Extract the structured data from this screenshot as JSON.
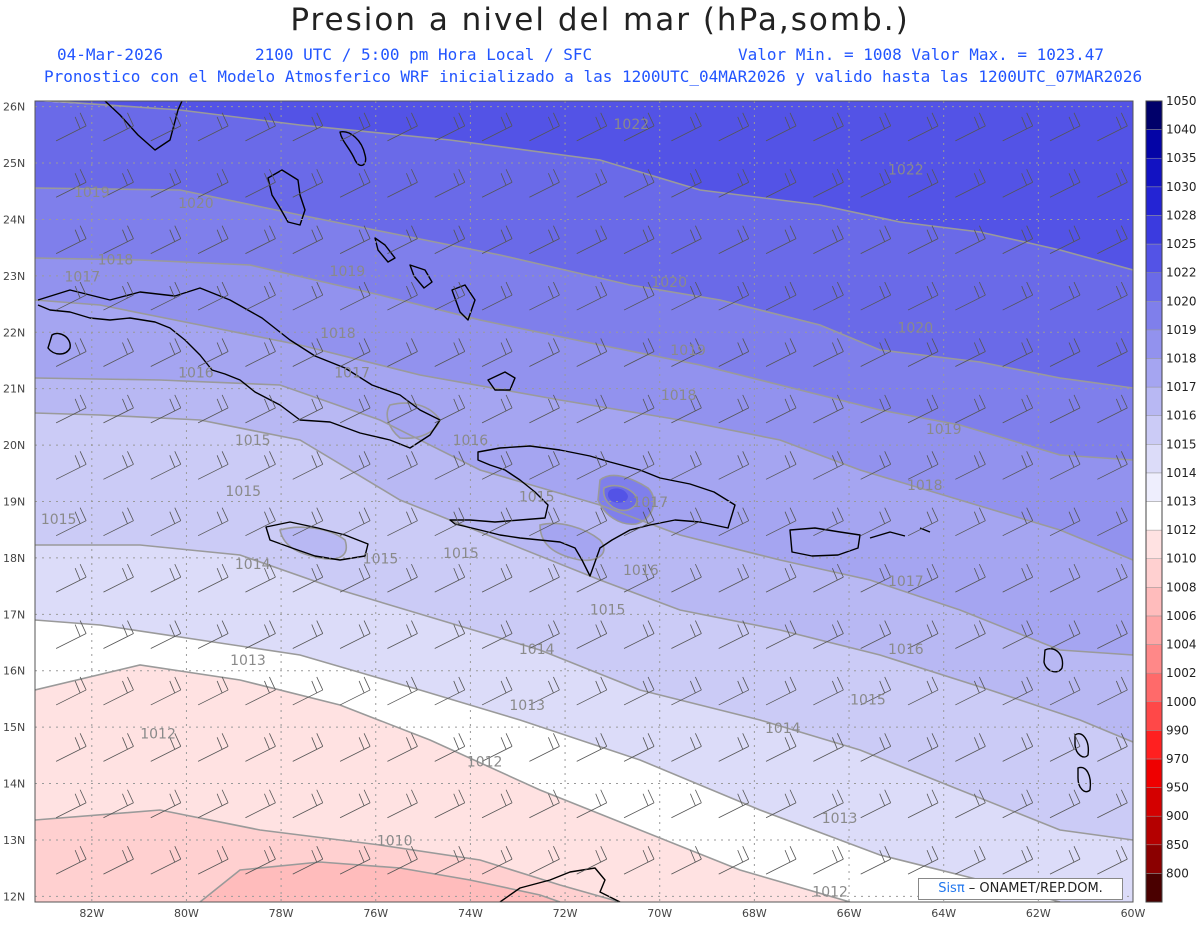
{
  "header": {
    "title": "Presion a nivel del mar (hPa,somb.)",
    "date": "04-Mar-2026",
    "time_info": "2100 UTC / 5:00 pm Hora Local / SFC",
    "minmax": "Valor Min. = 1008  Valor Max. = 1023.47",
    "model_info": "Pronostico con el Modelo Atmosferico WRF inicializado a las 1200UTC_04MAR2026 y valido hasta las  1200UTC_07MAR2026"
  },
  "map": {
    "lat_labels": [
      "26N",
      "25N",
      "24N",
      "23N",
      "22N",
      "21N",
      "20N",
      "19N",
      "18N",
      "17N",
      "16N",
      "15N",
      "14N",
      "13N",
      "12N"
    ],
    "lon_labels": [
      "82W",
      "80W",
      "78W",
      "76W",
      "74W",
      "72W",
      "70W",
      "68W",
      "66W",
      "64W",
      "62W",
      "60W"
    ],
    "contour_labels": [
      {
        "text": "1022",
        "lon": -70.6,
        "lat": 25.6
      },
      {
        "text": "1022",
        "lon": -64.8,
        "lat": 24.8
      },
      {
        "text": "1020",
        "lon": -79.8,
        "lat": 24.2
      },
      {
        "text": "1020",
        "lon": -69.8,
        "lat": 22.8
      },
      {
        "text": "1020",
        "lon": -64.6,
        "lat": 22.0
      },
      {
        "text": "1019",
        "lon": -82.0,
        "lat": 24.4
      },
      {
        "text": "1019",
        "lon": -76.6,
        "lat": 23.0
      },
      {
        "text": "1019",
        "lon": -69.4,
        "lat": 21.6
      },
      {
        "text": "1019",
        "lon": -64.0,
        "lat": 20.2
      },
      {
        "text": "1018",
        "lon": -81.5,
        "lat": 23.2
      },
      {
        "text": "1018",
        "lon": -76.8,
        "lat": 21.9
      },
      {
        "text": "1018",
        "lon": -69.6,
        "lat": 20.8
      },
      {
        "text": "1018",
        "lon": -64.4,
        "lat": 19.2
      },
      {
        "text": "1017",
        "lon": -82.2,
        "lat": 22.9
      },
      {
        "text": "1017",
        "lon": -76.5,
        "lat": 21.2
      },
      {
        "text": "1017",
        "lon": -70.2,
        "lat": 18.9
      },
      {
        "text": "1017",
        "lon": -64.8,
        "lat": 17.5
      },
      {
        "text": "1016",
        "lon": -79.8,
        "lat": 21.2
      },
      {
        "text": "1016",
        "lon": -74.0,
        "lat": 20.0
      },
      {
        "text": "1016",
        "lon": -70.4,
        "lat": 17.7
      },
      {
        "text": "1016",
        "lon": -64.8,
        "lat": 16.3
      },
      {
        "text": "1015",
        "lon": -78.6,
        "lat": 20.0
      },
      {
        "text": "1015",
        "lon": -78.8,
        "lat": 19.1
      },
      {
        "text": "1015",
        "lon": -82.7,
        "lat": 18.6
      },
      {
        "text": "1015",
        "lon": -75.9,
        "lat": 17.9
      },
      {
        "text": "1015",
        "lon": -71.1,
        "lat": 17.0
      },
      {
        "text": "1015",
        "lon": -65.6,
        "lat": 15.4
      },
      {
        "text": "1015",
        "lon": -72.6,
        "lat": 19.0
      },
      {
        "text": "1015",
        "lon": -74.2,
        "lat": 18.0
      },
      {
        "text": "1014",
        "lon": -78.6,
        "lat": 17.8
      },
      {
        "text": "1014",
        "lon": -72.6,
        "lat": 16.3
      },
      {
        "text": "1014",
        "lon": -67.4,
        "lat": 14.9
      },
      {
        "text": "1013",
        "lon": -78.7,
        "lat": 16.1
      },
      {
        "text": "1013",
        "lon": -72.8,
        "lat": 15.3
      },
      {
        "text": "1013",
        "lon": -66.2,
        "lat": 13.3
      },
      {
        "text": "1012",
        "lon": -80.6,
        "lat": 14.8
      },
      {
        "text": "1012",
        "lon": -73.7,
        "lat": 14.3
      },
      {
        "text": "1012",
        "lon": -66.4,
        "lat": 12.0
      },
      {
        "text": "1010",
        "lon": -75.6,
        "lat": 12.9
      }
    ]
  },
  "colorbar": {
    "labels": [
      "800",
      "850",
      "900",
      "950",
      "970",
      "990",
      "1000",
      "1002",
      "1004",
      "1006",
      "1008",
      "1010",
      "1012",
      "1013",
      "1014",
      "1015",
      "1016",
      "1017",
      "1018",
      "1019",
      "1020",
      "1022",
      "1025",
      "1028",
      "1030",
      "1035",
      "1040",
      "1050"
    ],
    "colors": [
      "#4a0000",
      "#8b0000",
      "#b40000",
      "#d40000",
      "#ef0000",
      "#ff2020",
      "#ff4848",
      "#ff6a6a",
      "#ff8888",
      "#ffa5a5",
      "#ffbcbc",
      "#ffd0d0",
      "#ffe2e2",
      "#ffffff",
      "#eeeefd",
      "#dcdcf9",
      "#cbcbf6",
      "#b8b8f3",
      "#a5a5f1",
      "#9292ee",
      "#7f7feb",
      "#6a6ae8",
      "#5353e6",
      "#3b3bdf",
      "#2424d4",
      "#1212c2",
      "#0404a6",
      "#00006a"
    ]
  },
  "credit": {
    "sis": "Sisπ",
    "rest": " – ONAMET/REP.DOM."
  }
}
